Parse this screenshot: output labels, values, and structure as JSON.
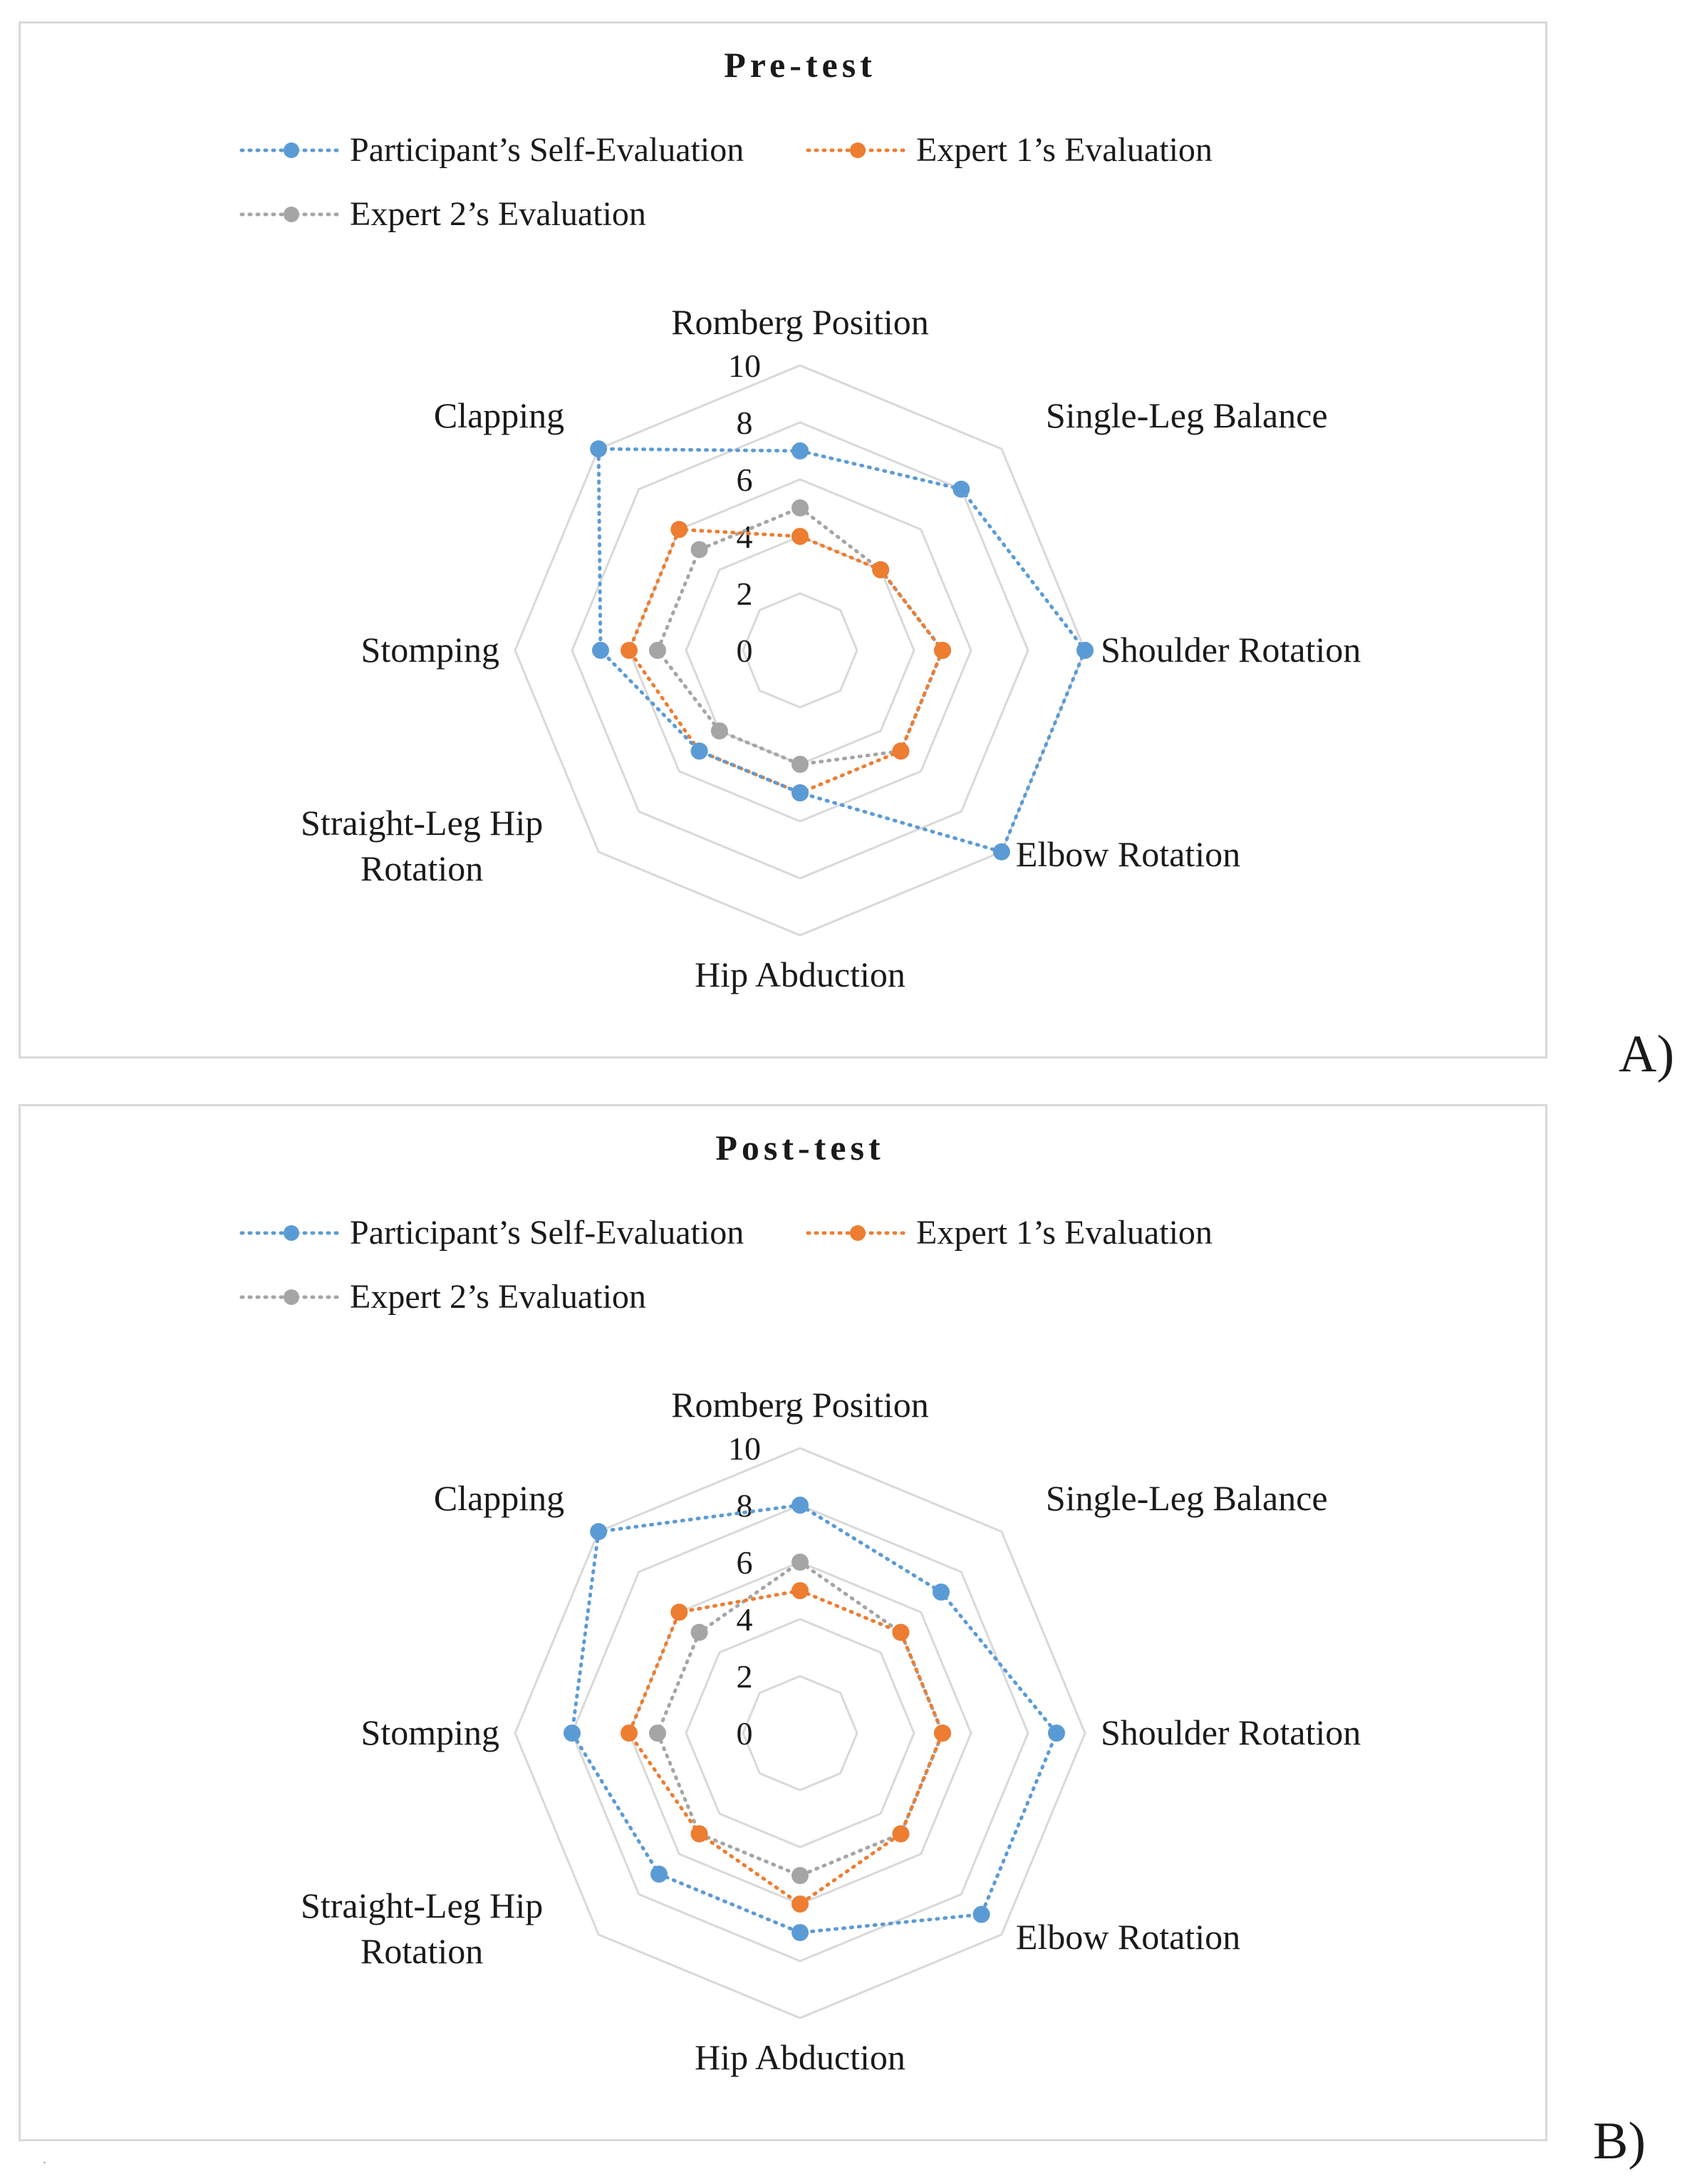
{
  "panel_labels": [
    "A)",
    "B)"
  ],
  "footnote_mark": ".",
  "colors": {
    "participant": "#5b9bd5",
    "expert1": "#ed7d31",
    "expert2": "#a5a5a5",
    "grid": "#d9d9d9",
    "border": "#d9d9d9"
  },
  "chart_data": [
    {
      "type": "radar",
      "title": "Pre-test",
      "axes": [
        "Romberg Position",
        "Single-Leg Balance",
        "Shoulder Rotation",
        "Elbow Rotation",
        "Hip Abduction",
        "Straight-Leg Hip Rotation",
        "Stomping",
        "Clapping"
      ],
      "rlim": [
        0,
        10
      ],
      "ticks": [
        0,
        2,
        4,
        6,
        8,
        10
      ],
      "legend": "top",
      "series": [
        {
          "name": "Participant’s Self-Evaluation",
          "key": "participant",
          "values": [
            7,
            8,
            10,
            10,
            5,
            5,
            7,
            10
          ]
        },
        {
          "name": "Expert 1’s Evaluation",
          "key": "expert1",
          "values": [
            4,
            4,
            5,
            5,
            5,
            5,
            6,
            6
          ]
        },
        {
          "name": "Expert 2’s Evaluation",
          "key": "expert2",
          "values": [
            5,
            4,
            5,
            5,
            4,
            4,
            5,
            5
          ]
        }
      ]
    },
    {
      "type": "radar",
      "title": "Post-test",
      "axes": [
        "Romberg Position",
        "Single-Leg Balance",
        "Shoulder Rotation",
        "Elbow Rotation",
        "Hip Abduction",
        "Straight-Leg Hip Rotation",
        "Stomping",
        "Clapping"
      ],
      "rlim": [
        0,
        10
      ],
      "ticks": [
        0,
        2,
        4,
        6,
        8,
        10
      ],
      "legend": "top",
      "series": [
        {
          "name": "Participant’s Self-Evaluation",
          "key": "participant",
          "values": [
            8,
            7,
            9,
            9,
            7,
            7,
            8,
            10
          ]
        },
        {
          "name": "Expert 1’s Evaluation",
          "key": "expert1",
          "values": [
            5,
            5,
            5,
            5,
            6,
            5,
            6,
            6
          ]
        },
        {
          "name": "Expert 2’s Evaluation",
          "key": "expert2",
          "values": [
            6,
            5,
            5,
            5,
            5,
            5,
            5,
            5
          ]
        }
      ]
    }
  ]
}
